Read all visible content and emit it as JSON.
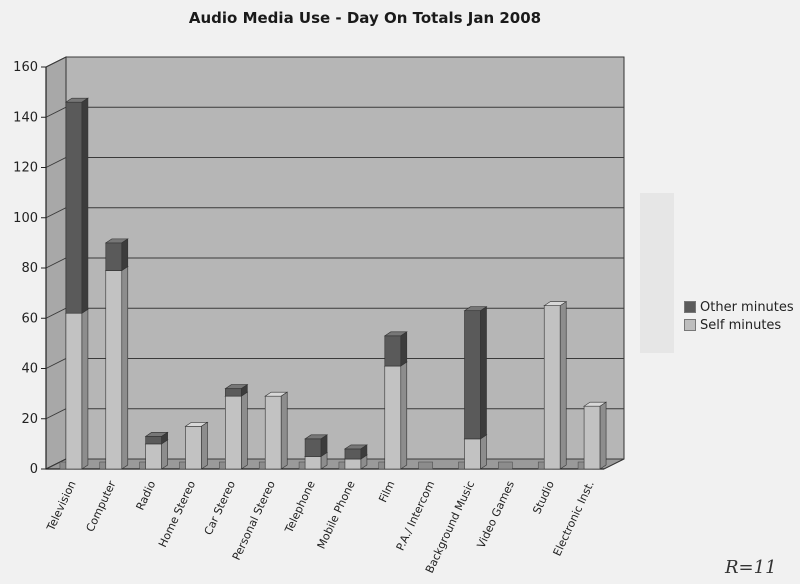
{
  "chart_data": {
    "type": "bar",
    "stacked": true,
    "title": "Audio Media Use - Day On Totals Jan 2008",
    "categories": [
      "Television",
      "Computer",
      "Radio",
      "Home Stereo",
      "Car Stereo",
      "Personal Stereo",
      "Telephone",
      "Mobile Phone",
      "Film",
      "P.A./ Intercom",
      "Background Music",
      "Video Games",
      "Studio",
      "Electronic Inst."
    ],
    "series": [
      {
        "name": "Self minutes",
        "values": [
          62,
          79,
          10,
          17,
          29,
          29,
          5,
          4,
          41,
          0,
          12,
          0,
          65,
          25
        ]
      },
      {
        "name": "Other minutes",
        "values": [
          84,
          11,
          3,
          0,
          3,
          0,
          7,
          4,
          12,
          0,
          51,
          0,
          0,
          0
        ]
      }
    ],
    "y_ticks": [
      "0",
      "20",
      "40",
      "60",
      "80",
      "100",
      "120",
      "140",
      "160"
    ],
    "ylim": [
      0,
      160
    ],
    "grid": true,
    "legend_position": "right",
    "colors": {
      "self": "#bdbdbd",
      "other": "#5a5a5a",
      "wall": "#b6b6b6",
      "floor": "#9a9a9a"
    }
  },
  "legend": {
    "other_label": "Other minutes",
    "self_label": "Self minutes"
  },
  "signature": "R=11"
}
